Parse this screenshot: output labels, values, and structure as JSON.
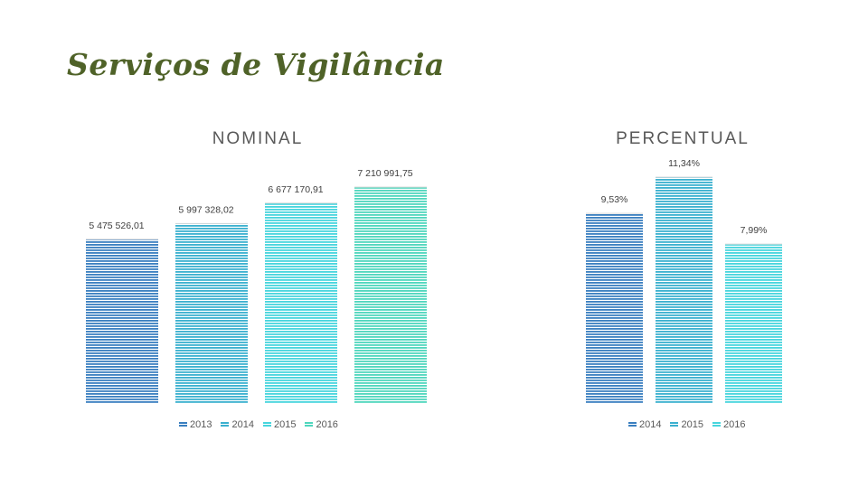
{
  "page": {
    "title": "Serviços de Vigilância"
  },
  "colors": {
    "s2013": "#3a7fc0",
    "s2014": "#3ab0cf",
    "s2015": "#47d5dd",
    "s2016": "#4fd6bd"
  },
  "chart_data": [
    {
      "type": "bar",
      "title": "NOMINAL",
      "categories": [
        "2013",
        "2014",
        "2015",
        "2016"
      ],
      "values": [
        5475526.01,
        5997328.02,
        6677170.91,
        7210991.75
      ],
      "labels": [
        "5 475 526,01",
        "5 997 328,02",
        "6 677 170,91",
        "7 210 991,75"
      ],
      "legend": [
        "2013",
        "2014",
        "2015",
        "2016"
      ],
      "legend_position": "bottom",
      "ylim": [
        0,
        7210991.75
      ],
      "grid": false
    },
    {
      "type": "bar",
      "title": "PERCENTUAL",
      "categories": [
        "2014",
        "2015",
        "2016"
      ],
      "values": [
        9.53,
        11.34,
        7.99
      ],
      "labels": [
        "9,53%",
        "11,34%",
        "7,99%"
      ],
      "legend": [
        "2014",
        "2015",
        "2016"
      ],
      "legend_position": "bottom",
      "ylim": [
        0,
        11.34
      ],
      "grid": false
    }
  ]
}
